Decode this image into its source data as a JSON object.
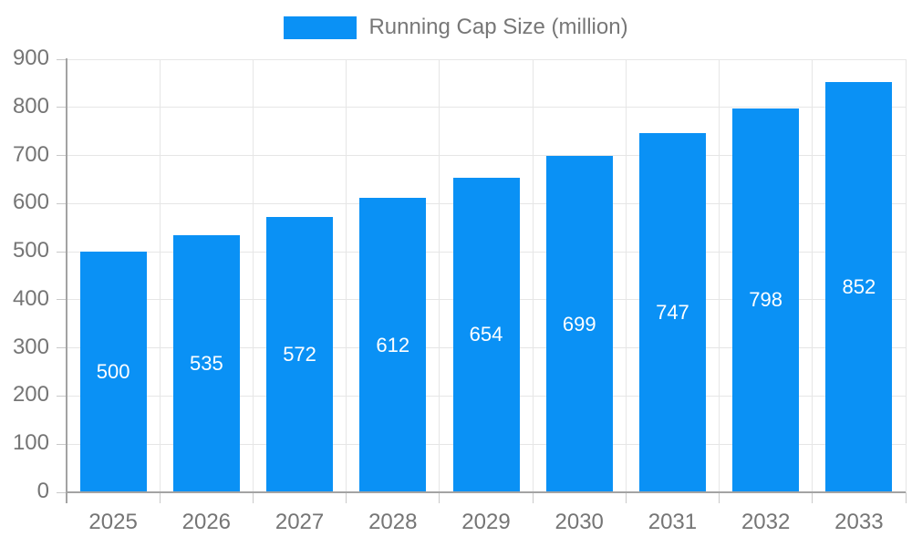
{
  "legend": {
    "label": "Running Cap Size (million)"
  },
  "colors": {
    "bar": "#0A91F5",
    "grid": "#E6E6E6",
    "axis": "#A3A3A3",
    "tick": "#C9C9C9",
    "text": "#757575",
    "legend_text": "#777777",
    "bar_label": "#FFFFFF"
  },
  "chart_data": {
    "type": "bar",
    "title": "Running Cap Size (million)",
    "categories": [
      "2025",
      "2026",
      "2027",
      "2028",
      "2029",
      "2030",
      "2031",
      "2032",
      "2033"
    ],
    "values": [
      500,
      535,
      572,
      612,
      654,
      699,
      747,
      798,
      852
    ],
    "xlabel": "",
    "ylabel": "",
    "ylim": [
      0,
      900
    ],
    "yticks": [
      0,
      100,
      200,
      300,
      400,
      500,
      600,
      700,
      800,
      900
    ],
    "grid": true,
    "legend_position": "top",
    "value_labels": "white, centered inside bars"
  }
}
